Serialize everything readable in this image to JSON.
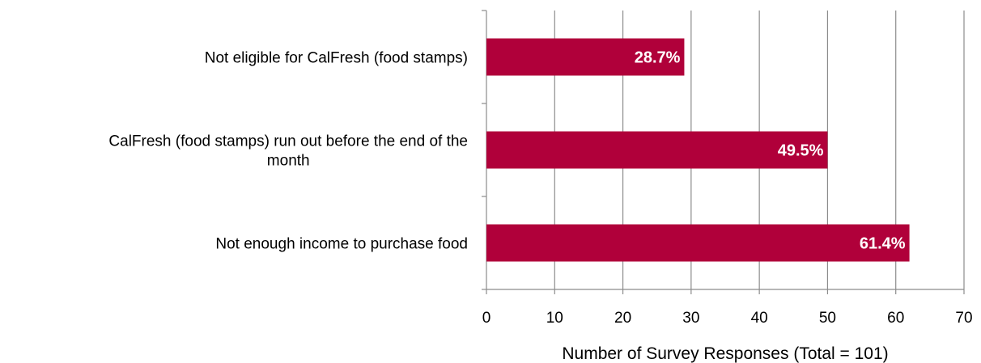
{
  "chart_data": {
    "type": "bar",
    "orientation": "horizontal",
    "title": "",
    "categories": [
      "Not eligible for CalFresh (food stamps)",
      "CalFresh (food stamps) run out before the end of the month",
      "Not enough income to purchase food"
    ],
    "category_label_lines": [
      [
        "Not eligible for CalFresh (food stamps)"
      ],
      [
        "CalFresh (food stamps) run out before the end of the",
        "month"
      ],
      [
        "Not enough income to purchase food"
      ]
    ],
    "values": [
      29,
      50,
      62
    ],
    "data_labels": [
      "28.7%",
      "49.5%",
      "61.4%"
    ],
    "xlabel": "Number of Survey Responses (Total = 101)",
    "ylabel": "",
    "xlim": [
      0,
      70
    ],
    "ticks": [
      0,
      10,
      20,
      30,
      40,
      50,
      60,
      70
    ],
    "grid": "vertical",
    "legend": "none",
    "bar_color": "#B0003A",
    "grid_color": "#8C8C8C"
  }
}
